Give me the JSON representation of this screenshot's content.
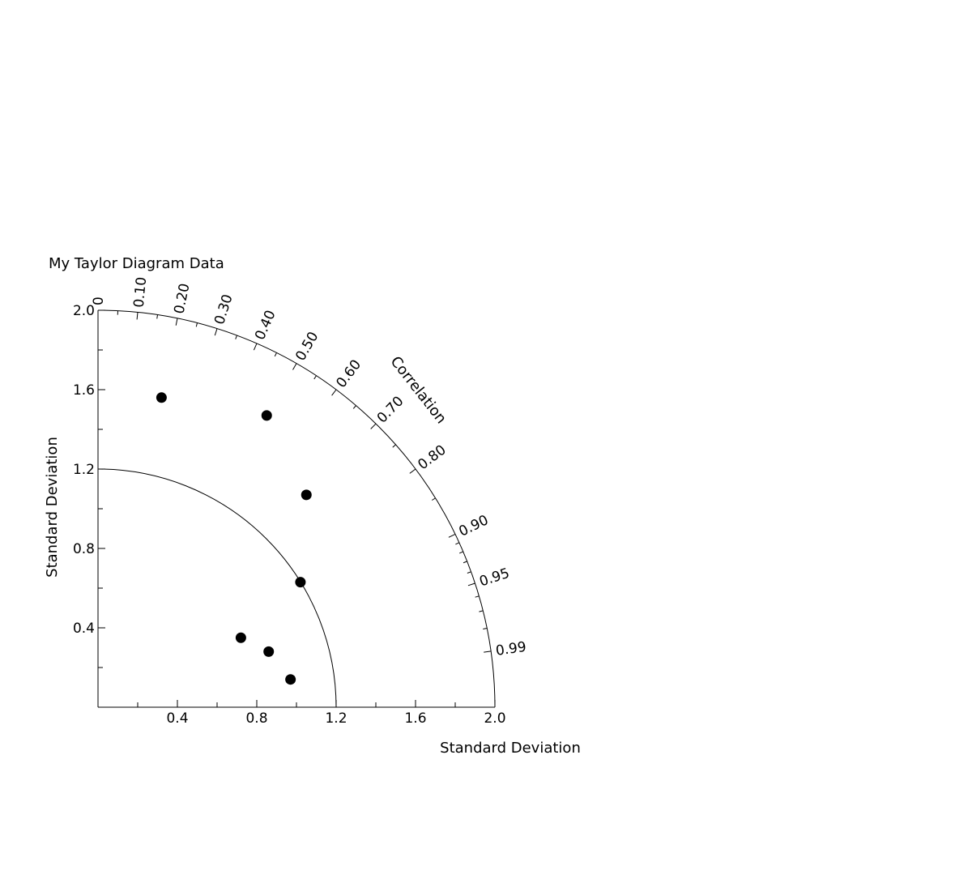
{
  "chart_data": {
    "type": "scatter",
    "subtype": "taylor-diagram",
    "title": "My Taylor Diagram Data",
    "xlabel": "Standard Deviation",
    "ylabel": "Standard Deviation",
    "angular_label": "Correlation",
    "xlim": [
      0,
      2.0
    ],
    "ylim": [
      0,
      2.0
    ],
    "x_tick_labels": [
      "0.4",
      "0.8",
      "1.2",
      "1.6",
      "2.0"
    ],
    "y_tick_labels": [
      "0.4",
      "0.8",
      "1.2",
      "1.6",
      "2.0"
    ],
    "correlation_tick_labels": [
      "0",
      "0.10",
      "0.20",
      "0.30",
      "0.40",
      "0.50",
      "0.60",
      "0.70",
      "0.80",
      "0.90",
      "0.95",
      "0.99"
    ],
    "reference_std": 1.2,
    "grid": false,
    "marker": "filled-circle",
    "marker_color": "#000000",
    "points": [
      {
        "x": 0.32,
        "y": 1.56
      },
      {
        "x": 0.85,
        "y": 1.47
      },
      {
        "x": 1.05,
        "y": 1.07
      },
      {
        "x": 1.02,
        "y": 0.63
      },
      {
        "x": 0.72,
        "y": 0.35
      },
      {
        "x": 0.86,
        "y": 0.28
      },
      {
        "x": 0.97,
        "y": 0.14
      }
    ]
  }
}
